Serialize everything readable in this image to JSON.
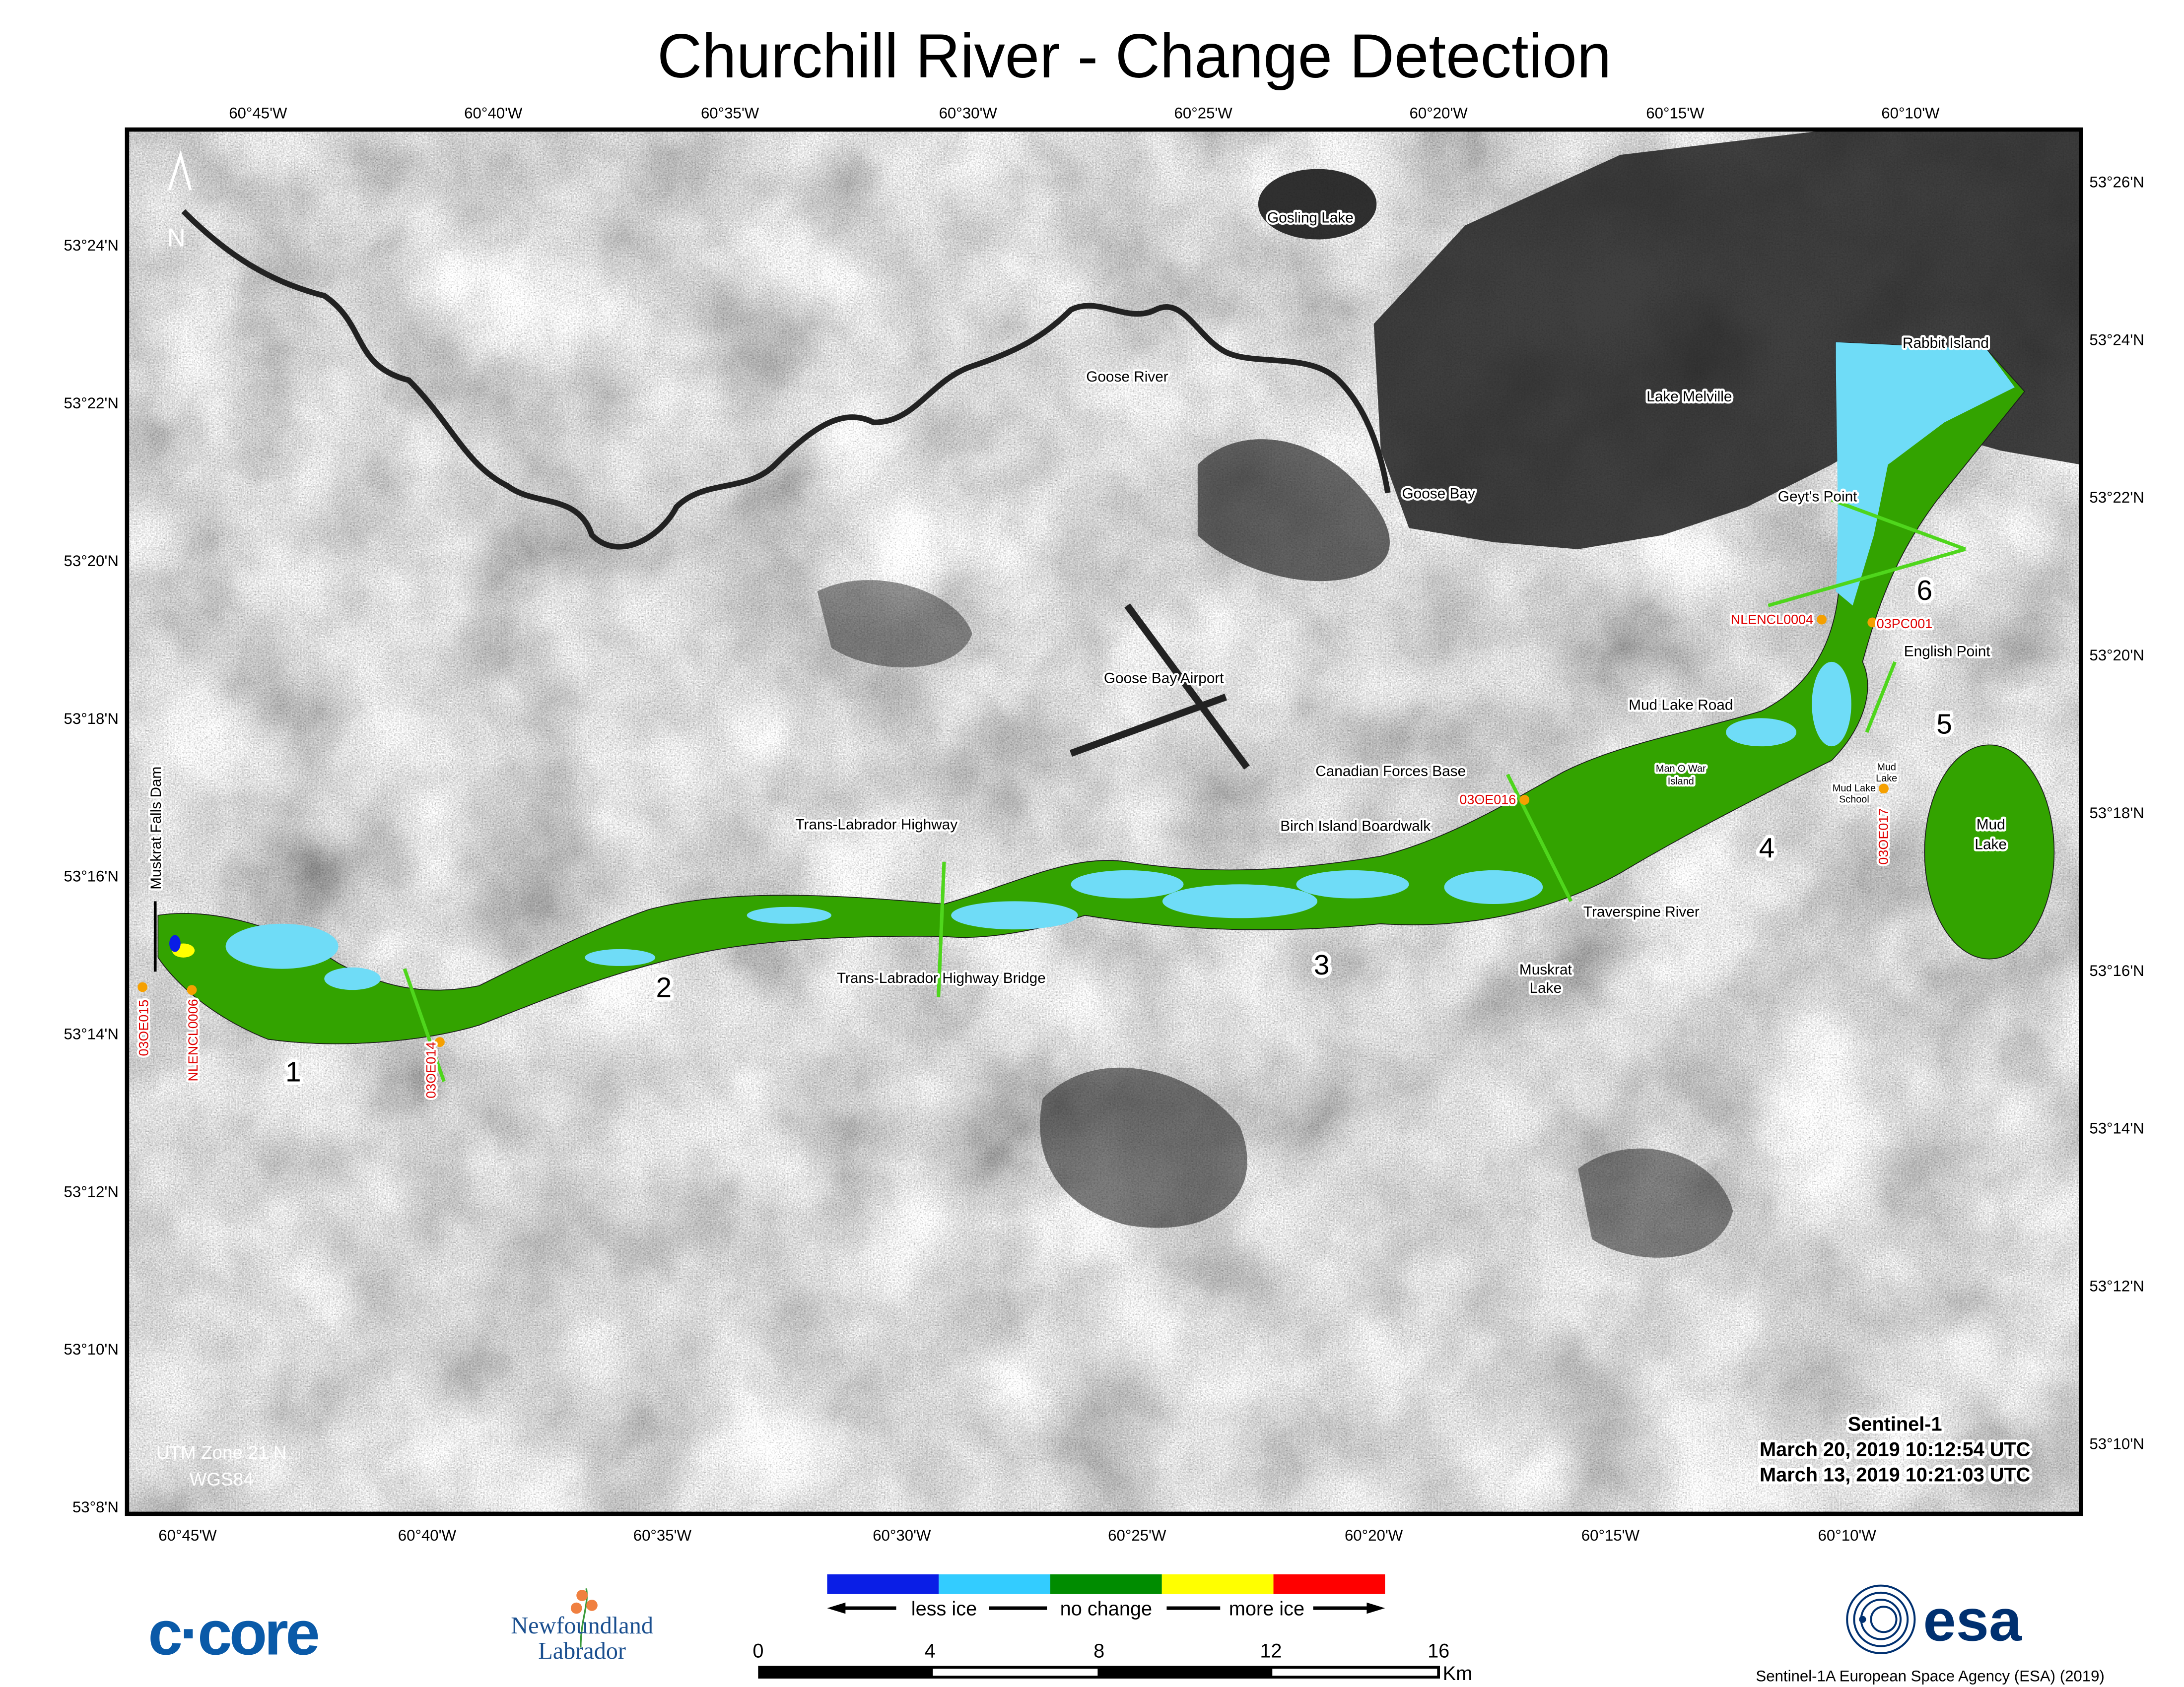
{
  "title": "Churchill River - Change Detection",
  "axes": {
    "top_lon": [
      "60°45'W",
      "60°40'W",
      "60°35'W",
      "60°30'W",
      "60°25'W",
      "60°20'W",
      "60°15'W",
      "60°10'W"
    ],
    "bottom_lon": [
      "60°45'W",
      "60°40'W",
      "60°35'W",
      "60°30'W",
      "60°25'W",
      "60°20'W",
      "60°15'W",
      "60°10'W"
    ],
    "left_lat": [
      "53°24'N",
      "53°22'N",
      "53°20'N",
      "53°18'N",
      "53°16'N",
      "53°14'N",
      "53°12'N",
      "53°10'N",
      "53°8'N"
    ],
    "right_lat": [
      "53°26'N",
      "53°24'N",
      "53°22'N",
      "53°20'N",
      "53°18'N",
      "53°16'N",
      "53°14'N",
      "53°12'N",
      "53°10'N"
    ]
  },
  "map": {
    "north_label": "N",
    "places": {
      "gosling_lake": "Gosling Lake",
      "goose_river": "Goose River",
      "lake_melville": "Lake Melville",
      "rabbit_island": "Rabbit Island",
      "goose_bay": "Goose Bay",
      "geyts_point": "Geyt's Point",
      "goose_bay_airport": "Goose Bay Airport",
      "english_point": "English Point",
      "mud_lake_road": "Mud Lake Road",
      "canadian_forces_base": "Canadian Forces Base",
      "man_o_war_1": "Man O War",
      "man_o_war_2": "Island",
      "mud_lake_small_1": "Mud",
      "mud_lake_small_2": "Lake",
      "mud_lake_school_1": "Mud Lake",
      "mud_lake_school_2": "School",
      "trans_labrador_highway": "Trans-Labrador Highway",
      "birch_island_boardwalk": "Birch Island Boardwalk",
      "mud_lake_1": "Mud",
      "mud_lake_2": "Lake",
      "traverspine_river": "Traverspine River",
      "muskrat_lake_1": "Muskrat",
      "muskrat_lake_2": "Lake",
      "tlh_bridge": "Trans-Labrador Highway Bridge",
      "muskrat_falls_dam": "Muskrat Falls Dam"
    },
    "stations": {
      "nlencl0004": "NLENCL0004",
      "pc001": "03PC001",
      "oe016": "03OE016",
      "oe017": "03OE017",
      "oe015": "03OE015",
      "nlencl0006": "NLENCL0006",
      "oe014": "03OE014"
    },
    "sections": [
      "1",
      "2",
      "3",
      "4",
      "5",
      "6"
    ],
    "projection": [
      "UTM Zone 21 N",
      "WGS84"
    ],
    "acquisition": [
      "Sentinel-1",
      "March 20, 2019 10:12:54 UTC",
      "March 13, 2019 10:21:03 UTC"
    ]
  },
  "legend": {
    "colors": [
      "#0a1ee6",
      "#33ccff",
      "#008c00",
      "#ffff00",
      "#ff0000"
    ],
    "labels": {
      "less": "less ice",
      "none": "no change",
      "more": "more ice"
    }
  },
  "scale_bar": {
    "ticks": [
      "0",
      "4",
      "8",
      "12",
      "16"
    ],
    "unit": "Km"
  },
  "logos": {
    "ccore": "c·core",
    "nl_1": "Newfoundland",
    "nl_2": "Labrador",
    "esa": "esa"
  },
  "credit": "Sentinel-1A European Space Agency (ESA) (2019)",
  "colors": {
    "river_no_change": "#33a300",
    "river_less_ice": "#6fdcf7",
    "station_dot": "#f5a000",
    "section_line": "#4fd61c"
  }
}
